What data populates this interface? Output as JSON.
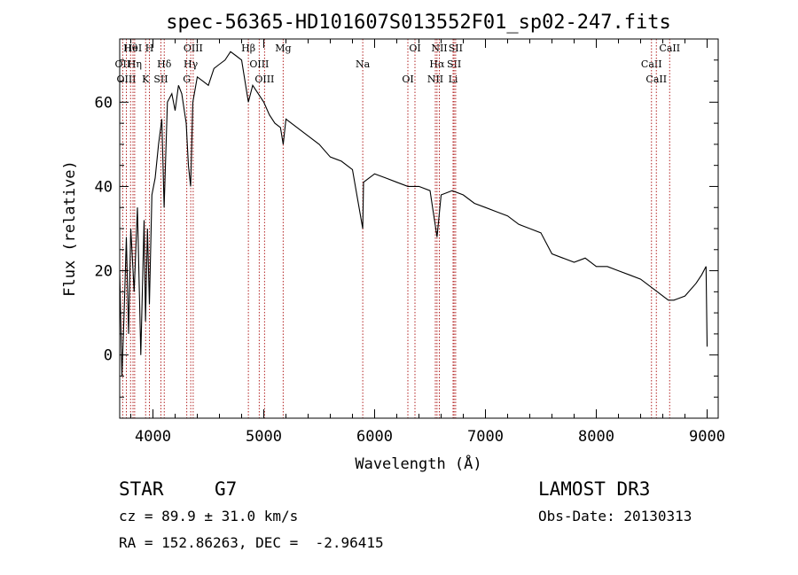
{
  "chart_data": {
    "type": "line",
    "title": "spec-56365-HD101607S013552F01_sp02-247.fits",
    "xlabel": "Wavelength (Å)",
    "ylabel": "Flux (relative)",
    "xlim": [
      3700,
      9100
    ],
    "ylim": [
      -15,
      75
    ],
    "xticks": [
      4000,
      5000,
      6000,
      7000,
      8000,
      9000
    ],
    "yticks": [
      0,
      20,
      40,
      60
    ],
    "series": [
      {
        "x": [
          3700,
          3720,
          3740,
          3760,
          3780,
          3800,
          3830,
          3860,
          3890,
          3920,
          3933,
          3950,
          3968,
          3990,
          4020,
          4050,
          4080,
          4101,
          4130,
          4170,
          4200,
          4230,
          4260,
          4300,
          4320,
          4340,
          4360,
          4400,
          4450,
          4500,
          4550,
          4600,
          4650,
          4700,
          4750,
          4800,
          4861,
          4900,
          4950,
          5000,
          5050,
          5100,
          5150,
          5175,
          5200,
          5300,
          5400,
          5500,
          5600,
          5700,
          5800,
          5893,
          5900,
          6000,
          6100,
          6200,
          6300,
          6400,
          6500,
          6563,
          6600,
          6700,
          6800,
          6900,
          7000,
          7100,
          7200,
          7300,
          7400,
          7500,
          7600,
          7700,
          7800,
          7900,
          8000,
          8100,
          8200,
          8300,
          8400,
          8500,
          8550,
          8600,
          8650,
          8700,
          8800,
          8900,
          8950,
          8990,
          9000
        ],
        "values": [
          20,
          -5,
          10,
          28,
          5,
          30,
          15,
          35,
          0,
          32,
          8,
          30,
          12,
          38,
          42,
          50,
          56,
          35,
          60,
          62,
          58,
          64,
          62,
          55,
          45,
          40,
          60,
          66,
          65,
          64,
          68,
          69,
          70,
          72,
          71,
          70,
          60,
          64,
          62,
          60,
          57,
          55,
          54,
          50,
          56,
          54,
          52,
          50,
          47,
          46,
          44,
          30,
          41,
          43,
          42,
          41,
          40,
          40,
          39,
          28,
          38,
          39,
          38,
          36,
          35,
          34,
          33,
          31,
          30,
          29,
          24,
          23,
          22,
          23,
          21,
          21,
          20,
          19,
          18,
          16,
          15,
          14,
          13,
          13,
          14,
          17,
          19,
          21,
          2
        ]
      }
    ],
    "lines": [
      {
        "name": "Hθ",
        "x": 3798
      },
      {
        "name": "OII",
        "x": 3727
      },
      {
        "name": "OIII",
        "x": 3760
      },
      {
        "name": "HeI",
        "x": 3820
      },
      {
        "name": "Hη",
        "x": 3835
      },
      {
        "name": "K",
        "x": 3934
      },
      {
        "name": "H",
        "x": 3968
      },
      {
        "name": "Hδ",
        "x": 4102
      },
      {
        "name": "SII",
        "x": 4072
      },
      {
        "name": "OIII",
        "x": 4363
      },
      {
        "name": "Hγ",
        "x": 4341
      },
      {
        "name": "G",
        "x": 4305
      },
      {
        "name": "Hβ",
        "x": 4861
      },
      {
        "name": "OIII",
        "x": 4959
      },
      {
        "name": "OIII",
        "x": 5007
      },
      {
        "name": "Mg",
        "x": 5175
      },
      {
        "name": "Na",
        "x": 5893
      },
      {
        "name": "OI",
        "x": 6300
      },
      {
        "name": "OI",
        "x": 6364
      },
      {
        "name": "Hα",
        "x": 6563
      },
      {
        "name": "NII",
        "x": 6548
      },
      {
        "name": "NII",
        "x": 6584
      },
      {
        "name": "SII",
        "x": 6717
      },
      {
        "name": "Li",
        "x": 6708
      },
      {
        "name": "SII",
        "x": 6731
      },
      {
        "name": "CaII",
        "x": 8498
      },
      {
        "name": "CaII",
        "x": 8542
      },
      {
        "name": "CaII",
        "x": 8662
      }
    ]
  },
  "info": {
    "class": "STAR",
    "subclass": "G7",
    "survey": "LAMOST DR3",
    "cz": "cz = 89.9 ± 31.0 km/s",
    "obs_date": "Obs-Date: 20130313",
    "coords": "RA = 152.86263, DEC =  -2.96415"
  }
}
